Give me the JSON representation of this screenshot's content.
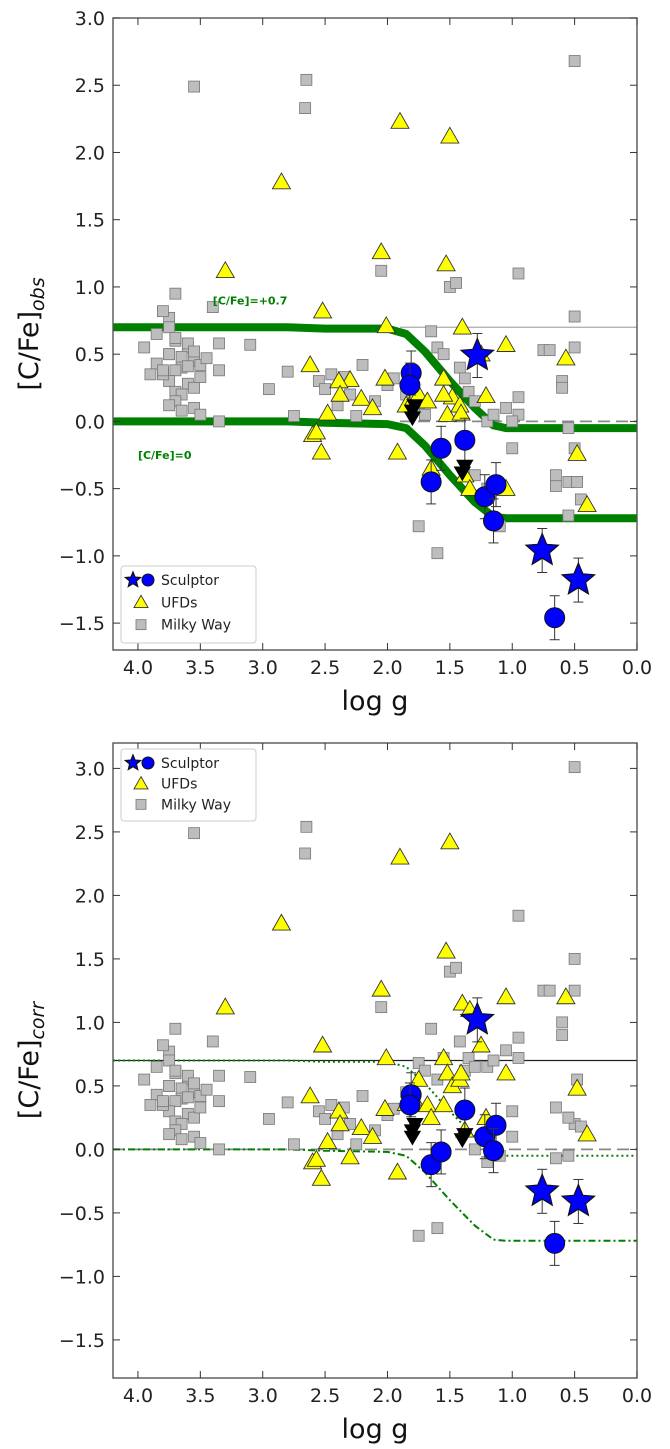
{
  "chart_data": [
    {
      "type": "scatter",
      "xlabel": "log g",
      "ylabel_main": "[C/Fe]",
      "ylabel_sub": "obs",
      "xlim": [
        4.2,
        0.0
      ],
      "ylim": [
        -1.7,
        3.0
      ],
      "x_ticks": [
        "4.0",
        "3.5",
        "3.0",
        "2.5",
        "2.0",
        "1.5",
        "1.0",
        "0.5",
        "0.0"
      ],
      "y_ticks": [
        "−1.5",
        "−1.0",
        "−0.5",
        "0.0",
        "0.5",
        "1.0",
        "1.5",
        "2.0",
        "2.5",
        "3.0"
      ],
      "legend_position": "lower-left",
      "legend": [
        "Sculptor",
        "UFDs",
        "Milky Way"
      ],
      "annotations": [
        {
          "text": "[C/Fe]=+0.7",
          "x": 3.4,
          "y": 0.87
        },
        {
          "text": "[C/Fe]=0",
          "x": 4.0,
          "y": -0.28
        }
      ],
      "reference_lines": [
        {
          "name": "solid",
          "x": [
            1.9,
            0.0
          ],
          "y": [
            0.7,
            0.7
          ]
        },
        {
          "name": "dashed",
          "x": [
            1.9,
            0.0
          ],
          "y": [
            0.0,
            0.0
          ]
        }
      ],
      "correction_curves": [
        {
          "x": [
            4.2,
            2.8,
            2.5,
            2.0,
            1.85,
            1.7,
            1.5,
            1.3,
            1.15,
            1.05,
            0.0
          ],
          "y": [
            0.7,
            0.7,
            0.69,
            0.69,
            0.65,
            0.52,
            0.3,
            0.1,
            -0.03,
            -0.05,
            -0.05
          ]
        },
        {
          "x": [
            4.2,
            2.8,
            2.5,
            2.0,
            1.85,
            1.7,
            1.5,
            1.3,
            1.15,
            1.05,
            0.0
          ],
          "y": [
            0.0,
            0.0,
            -0.01,
            -0.02,
            -0.05,
            -0.18,
            -0.4,
            -0.6,
            -0.71,
            -0.72,
            -0.72
          ]
        }
      ],
      "series": [
        {
          "name": "Milky Way",
          "marker": "square",
          "color": "#bdbdbd",
          "x": [
            3.55,
            2.65,
            2.66,
            0.5,
            3.75,
            3.7,
            3.8,
            3.75,
            3.85,
            3.7,
            3.6,
            3.75,
            3.65,
            3.55,
            3.5,
            3.65,
            3.7,
            3.8,
            3.75,
            3.6,
            3.55,
            3.7,
            3.65,
            3.8,
            3.5,
            3.75,
            3.6,
            3.7,
            3.55,
            3.45,
            3.85,
            3.6,
            3.7,
            3.75,
            3.55,
            3.65,
            3.5,
            3.8,
            3.95,
            3.9,
            3.4,
            3.35,
            3.35,
            3.1,
            3.35,
            2.95,
            2.8,
            2.75,
            2.55,
            2.5,
            2.45,
            2.4,
            2.35,
            2.3,
            2.25,
            2.2,
            2.1,
            2.05,
            2.0,
            1.95,
            1.85,
            1.8,
            1.75,
            1.7,
            1.65,
            1.6,
            1.55,
            1.5,
            1.45,
            1.42,
            1.38,
            1.35,
            1.3,
            1.2,
            1.15,
            1.05,
            0.95,
            0.95,
            1.0,
            0.95,
            1.0,
            0.75,
            0.7,
            0.6,
            0.6,
            0.5,
            0.5,
            0.55,
            0.5,
            0.48,
            0.65,
            0.55,
            0.45,
            0.65,
            0.55,
            1.75,
            1.6,
            1.2,
            1.3,
            1.1
          ],
          "y": [
            2.49,
            2.54,
            2.33,
            2.68,
            0.77,
            0.95,
            0.82,
            0.7,
            0.65,
            0.6,
            0.55,
            0.5,
            0.48,
            0.45,
            0.42,
            0.4,
            0.38,
            0.36,
            0.3,
            0.28,
            0.25,
            0.22,
            0.2,
            0.35,
            0.33,
            0.5,
            0.58,
            0.62,
            0.52,
            0.47,
            0.43,
            0.41,
            0.15,
            0.12,
            0.1,
            0.08,
            0.05,
            0.38,
            0.55,
            0.35,
            0.85,
            0.58,
            0.38,
            0.57,
            0.0,
            0.24,
            0.37,
            0.04,
            0.3,
            0.24,
            0.35,
            0.12,
            0.33,
            0.2,
            0.04,
            0.42,
            0.15,
            1.12,
            0.27,
            0.32,
            0.2,
            0.15,
            0.1,
            0.05,
            0.67,
            0.55,
            0.5,
            1.0,
            1.03,
            0.4,
            0.32,
            0.22,
            0.15,
            0.0,
            0.05,
            0.1,
            0.05,
            0.18,
            0.0,
            1.1,
            -0.2,
            0.53,
            0.53,
            0.3,
            0.25,
            0.55,
            0.78,
            -0.45,
            -0.2,
            -0.45,
            -0.48,
            -0.7,
            -0.58,
            -0.4,
            -0.05,
            -0.78,
            -0.98,
            -0.5,
            -0.4,
            -0.78
          ]
        },
        {
          "name": "UFDs",
          "marker": "triangle",
          "color": "#ffff00",
          "x": [
            2.85,
            1.9,
            1.5,
            3.3,
            2.05,
            1.53,
            2.52,
            2.01,
            1.4,
            1.05,
            0.57,
            2.62,
            2.6,
            2.57,
            2.48,
            2.3,
            2.39,
            2.38,
            2.21,
            2.02,
            2.12,
            1.92,
            1.85,
            1.79,
            1.75,
            1.68,
            1.55,
            1.52,
            1.48,
            1.42,
            1.38,
            1.34,
            1.25,
            1.21,
            1.05,
            0.48,
            0.4,
            1.65,
            1.55,
            1.41,
            2.53
          ],
          "y": [
            1.78,
            2.23,
            2.12,
            1.12,
            1.26,
            1.17,
            0.82,
            0.71,
            0.7,
            0.57,
            0.47,
            0.42,
            -0.1,
            -0.08,
            0.06,
            0.31,
            0.3,
            0.2,
            0.17,
            0.32,
            0.1,
            -0.23,
            0.12,
            0.17,
            0.2,
            0.15,
            0.32,
            0.05,
            0.18,
            0.12,
            -0.4,
            -0.5,
            0.5,
            0.19,
            -0.5,
            -0.24,
            -0.62,
            -0.35,
            0.2,
            0.06,
            -0.23
          ]
        },
        {
          "name": "Sculptor",
          "marker": "circle",
          "color": "#0000ff",
          "x": [
            1.81,
            1.82,
            1.65,
            1.57,
            1.38,
            1.22,
            1.13,
            1.15,
            0.66
          ],
          "y": [
            0.36,
            0.27,
            -0.45,
            -0.2,
            -0.14,
            -0.56,
            -0.47,
            -0.74,
            -1.46
          ]
        },
        {
          "name": "Sculptor stars",
          "marker": "star",
          "color": "#0000ff",
          "x": [
            1.28,
            0.76,
            0.47
          ],
          "y": [
            0.49,
            -0.96,
            -1.18
          ]
        },
        {
          "name": "Upper limits",
          "marker": "down-triangle",
          "color": "#000000",
          "x": [
            1.8,
            1.8,
            1.78,
            1.4,
            1.38
          ],
          "y": [
            0.08,
            0.03,
            0.12,
            -0.38,
            -0.33
          ]
        }
      ]
    },
    {
      "type": "scatter",
      "xlabel": "log g",
      "ylabel_main": "[C/Fe]",
      "ylabel_sub": "corr",
      "xlim": [
        4.2,
        0.0
      ],
      "ylim": [
        -1.8,
        3.2
      ],
      "x_ticks": [
        "4.0",
        "3.5",
        "3.0",
        "2.5",
        "2.0",
        "1.5",
        "1.0",
        "0.5",
        "0.0"
      ],
      "y_ticks": [
        "−1.5",
        "−1.0",
        "−0.5",
        "0.0",
        "0.5",
        "1.0",
        "1.5",
        "2.0",
        "2.5",
        "3.0"
      ],
      "legend_position": "top-left",
      "legend": [
        "Sculptor",
        "UFDs",
        "Milky Way"
      ],
      "reference_lines": [
        {
          "name": "solid",
          "x": [
            4.2,
            0.0
          ],
          "y": [
            0.7,
            0.7
          ]
        },
        {
          "name": "dashed",
          "x": [
            4.2,
            0.0
          ],
          "y": [
            0.0,
            0.0
          ]
        }
      ],
      "correction_curves": [
        {
          "x": [
            4.2,
            2.8,
            2.5,
            2.0,
            1.85,
            1.7,
            1.5,
            1.3,
            1.15,
            1.05,
            0.0
          ],
          "y": [
            0.7,
            0.7,
            0.69,
            0.69,
            0.65,
            0.52,
            0.3,
            0.1,
            -0.03,
            -0.05,
            -0.05
          ]
        },
        {
          "x": [
            4.2,
            2.8,
            2.5,
            2.0,
            1.85,
            1.7,
            1.5,
            1.3,
            1.15,
            1.05,
            0.0
          ],
          "y": [
            0.0,
            0.0,
            -0.01,
            -0.02,
            -0.05,
            -0.18,
            -0.4,
            -0.6,
            -0.71,
            -0.72,
            -0.72
          ]
        }
      ],
      "series": [
        {
          "name": "Milky Way",
          "marker": "square",
          "color": "#bdbdbd",
          "x": [
            3.55,
            2.65,
            2.66,
            0.5,
            3.75,
            3.7,
            3.8,
            3.75,
            3.85,
            3.7,
            3.6,
            3.75,
            3.65,
            3.55,
            3.5,
            3.65,
            3.7,
            3.8,
            3.75,
            3.6,
            3.55,
            3.7,
            3.65,
            3.8,
            3.5,
            3.75,
            3.6,
            3.7,
            3.55,
            3.45,
            3.85,
            3.6,
            3.7,
            3.75,
            3.55,
            3.65,
            3.5,
            3.8,
            3.95,
            3.9,
            3.4,
            3.35,
            3.35,
            3.1,
            3.35,
            2.95,
            2.8,
            2.75,
            2.55,
            2.5,
            2.45,
            2.4,
            2.35,
            2.3,
            2.25,
            2.2,
            2.1,
            2.05,
            2.0,
            1.95,
            1.85,
            1.8,
            1.75,
            1.7,
            1.65,
            1.6,
            1.55,
            1.5,
            1.45,
            1.42,
            1.38,
            1.35,
            1.3,
            1.2,
            1.15,
            1.05,
            0.95,
            0.95,
            1.0,
            0.95,
            1.0,
            0.75,
            0.7,
            0.6,
            0.6,
            0.5,
            0.5,
            0.55,
            0.5,
            0.48,
            0.65,
            0.55,
            0.45,
            0.65,
            0.55,
            1.75,
            1.6,
            1.2,
            1.3,
            1.1
          ],
          "y": [
            2.49,
            2.54,
            2.33,
            3.01,
            0.77,
            0.95,
            0.82,
            0.7,
            0.65,
            0.6,
            0.55,
            0.5,
            0.48,
            0.45,
            0.42,
            0.4,
            0.38,
            0.36,
            0.3,
            0.28,
            0.25,
            0.22,
            0.2,
            0.35,
            0.33,
            0.5,
            0.58,
            0.62,
            0.52,
            0.47,
            0.43,
            0.41,
            0.15,
            0.12,
            0.1,
            0.08,
            0.05,
            0.38,
            0.55,
            0.35,
            0.85,
            0.58,
            0.38,
            0.57,
            0.0,
            0.24,
            0.37,
            0.04,
            0.3,
            0.24,
            0.35,
            0.12,
            0.33,
            0.2,
            0.04,
            0.42,
            0.15,
            1.12,
            0.27,
            0.32,
            0.45,
            0.35,
            0.68,
            0.62,
            0.95,
            0.55,
            0.72,
            1.4,
            1.43,
            0.85,
            0.62,
            0.72,
            0.65,
            0.65,
            0.7,
            0.78,
            0.88,
            1.84,
            0.3,
            0.72,
            0.1,
            1.25,
            1.25,
            0.9,
            1.0,
            1.5,
            1.25,
            0.25,
            0.2,
            0.55,
            -0.07,
            -0.05,
            0.18,
            0.33,
            0.25,
            -0.68,
            -0.62,
            -0.1,
            0.0,
            -0.05
          ]
        },
        {
          "name": "UFDs",
          "marker": "triangle",
          "color": "#ffff00",
          "x": [
            2.85,
            1.9,
            1.5,
            3.3,
            2.05,
            1.53,
            2.52,
            2.01,
            1.4,
            1.05,
            0.57,
            2.62,
            2.6,
            2.57,
            2.48,
            2.3,
            2.39,
            2.38,
            2.21,
            2.02,
            2.12,
            1.92,
            1.85,
            1.79,
            1.75,
            1.68,
            1.55,
            1.52,
            1.48,
            1.42,
            1.38,
            1.34,
            1.25,
            1.21,
            1.05,
            0.48,
            0.4,
            1.65,
            1.55,
            1.41,
            2.53
          ],
          "y": [
            1.78,
            2.3,
            2.42,
            1.12,
            1.26,
            1.56,
            0.82,
            0.72,
            1.15,
            1.2,
            1.2,
            0.42,
            -0.1,
            -0.08,
            0.06,
            -0.06,
            0.3,
            0.2,
            0.17,
            0.32,
            0.1,
            -0.18,
            0.36,
            0.4,
            0.55,
            0.35,
            0.72,
            0.6,
            0.5,
            0.55,
            0.15,
            1.1,
            0.82,
            0.25,
            0.6,
            0.48,
            0.12,
            0.25,
            0.35,
            0.6,
            -0.23
          ]
        },
        {
          "name": "Sculptor",
          "marker": "circle",
          "color": "#0000ff",
          "x": [
            1.81,
            1.82,
            1.65,
            1.57,
            1.38,
            1.22,
            1.13,
            1.15,
            0.66
          ],
          "y": [
            0.43,
            0.35,
            -0.12,
            -0.02,
            0.31,
            0.1,
            0.19,
            -0.01,
            -0.74
          ]
        },
        {
          "name": "Sculptor stars",
          "marker": "star",
          "color": "#0000ff",
          "x": [
            1.28,
            0.76,
            0.47
          ],
          "y": [
            1.02,
            -0.33,
            -0.41
          ]
        },
        {
          "name": "Upper limits",
          "marker": "down-triangle",
          "color": "#000000",
          "x": [
            1.8,
            1.8,
            1.78,
            1.4,
            1.38
          ],
          "y": [
            0.15,
            0.1,
            0.2,
            0.08,
            0.12
          ]
        }
      ]
    }
  ],
  "colors": {
    "sculptor": "#0000ff",
    "ufd": "#ffff00",
    "milky_way": "#bdbdbd",
    "curve": "#008000",
    "axis": "#555555"
  }
}
